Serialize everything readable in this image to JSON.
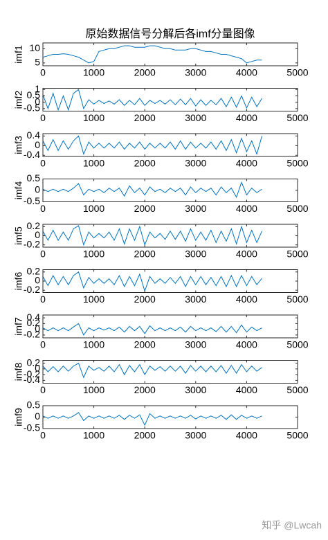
{
  "chart_data": [
    {
      "type": "line",
      "title": "原始数据信号分解后各imf分量图像",
      "ylabel": "imf1",
      "color": "#0072BD",
      "x": [
        0,
        100,
        200,
        300,
        400,
        500,
        600,
        700,
        800,
        900,
        1000,
        1100,
        1200,
        1300,
        1400,
        1500,
        1600,
        1700,
        1800,
        1900,
        2000,
        2100,
        2200,
        2300,
        2400,
        2500,
        2600,
        2700,
        2800,
        2900,
        3000,
        3100,
        3200,
        3300,
        3400,
        3500,
        3600,
        3700,
        3800,
        3900,
        4000,
        4100,
        4200,
        4300
      ],
      "values": [
        7,
        7.5,
        8,
        8,
        8.2,
        8,
        7.5,
        7,
        6,
        5,
        5.5,
        9,
        9.5,
        10,
        10,
        10.5,
        11,
        11,
        10.5,
        10.5,
        10.5,
        11,
        11,
        10.5,
        10,
        10,
        9.5,
        9.5,
        9.5,
        10,
        10,
        9.5,
        9,
        9,
        8.5,
        8,
        8,
        7.5,
        7,
        6.5,
        5,
        5.5,
        6,
        6
      ],
      "xlim": [
        0,
        5000
      ],
      "ylim": [
        4,
        12
      ],
      "xticks": [
        0,
        1000,
        2000,
        3000,
        4000,
        5000
      ],
      "yticks": [
        5,
        10
      ]
    },
    {
      "type": "line",
      "ylabel": "imf2",
      "color": "#0072BD",
      "x": [
        0,
        100,
        200,
        300,
        400,
        500,
        600,
        700,
        800,
        900,
        1000,
        1100,
        1200,
        1300,
        1400,
        1500,
        1600,
        1700,
        1800,
        1900,
        2000,
        2100,
        2200,
        2300,
        2400,
        2500,
        2600,
        2700,
        2800,
        2900,
        3000,
        3100,
        3200,
        3300,
        3400,
        3500,
        3600,
        3700,
        3800,
        3900,
        4000,
        4100,
        4200,
        4300
      ],
      "values": [
        0.6,
        -0.5,
        0.7,
        -0.6,
        0.5,
        -0.6,
        0.7,
        1.0,
        -0.5,
        0.2,
        -0.15,
        0.15,
        -0.1,
        0.1,
        -0.15,
        0.2,
        -0.25,
        0.15,
        -0.2,
        0.3,
        -0.25,
        0.15,
        -0.1,
        0.15,
        -0.15,
        0.2,
        -0.2,
        0.25,
        -0.2,
        0.3,
        -0.3,
        0.2,
        -0.25,
        0.15,
        -0.2,
        0.3,
        -0.35,
        0.4,
        -0.4,
        0.5,
        -0.45,
        0.4,
        -0.35,
        0.3
      ],
      "xlim": [
        0,
        5000
      ],
      "ylim": [
        -0.7,
        1.1
      ],
      "xticks": [
        0,
        1000,
        2000,
        3000,
        4000,
        5000
      ],
      "yticks": [
        -0.5,
        0,
        0.5,
        1
      ]
    },
    {
      "type": "line",
      "ylabel": "imf3",
      "color": "#0072BD",
      "x": [
        0,
        100,
        200,
        300,
        400,
        500,
        600,
        700,
        800,
        900,
        1000,
        1100,
        1200,
        1300,
        1400,
        1500,
        1600,
        1700,
        1800,
        1900,
        2000,
        2100,
        2200,
        2300,
        2400,
        2500,
        2600,
        2700,
        2800,
        2900,
        3000,
        3100,
        3200,
        3300,
        3400,
        3500,
        3600,
        3700,
        3800,
        3900,
        4000,
        4100,
        4200,
        4300
      ],
      "values": [
        0.2,
        -0.2,
        0.25,
        -0.2,
        0.2,
        -0.15,
        0.2,
        0.4,
        -0.35,
        0.15,
        -0.1,
        0.1,
        -0.1,
        0.1,
        -0.1,
        0.15,
        -0.15,
        0.1,
        -0.1,
        0.15,
        -0.15,
        0.1,
        -0.1,
        0.1,
        -0.1,
        0.15,
        -0.15,
        0.2,
        -0.15,
        0.15,
        -0.1,
        0.1,
        -0.1,
        0.15,
        -0.15,
        0.2,
        -0.2,
        0.25,
        -0.3,
        0.3,
        -0.25,
        0.2,
        -0.35,
        0.4
      ],
      "xlim": [
        0,
        5000
      ],
      "ylim": [
        -0.45,
        0.5
      ],
      "xticks": [
        0,
        1000,
        2000,
        3000,
        4000,
        5000
      ],
      "yticks": [
        -0.4,
        0,
        0.4
      ]
    },
    {
      "type": "line",
      "ylabel": "imf4",
      "color": "#0072BD",
      "x": [
        0,
        100,
        200,
        300,
        400,
        500,
        600,
        700,
        800,
        900,
        1000,
        1100,
        1200,
        1300,
        1400,
        1500,
        1600,
        1700,
        1800,
        1900,
        2000,
        2100,
        2200,
        2300,
        2400,
        2500,
        2600,
        2700,
        2800,
        2900,
        3000,
        3100,
        3200,
        3300,
        3400,
        3500,
        3600,
        3700,
        3800,
        3900,
        4000,
        4100,
        4200,
        4300
      ],
      "values": [
        0.05,
        -0.05,
        0.05,
        -0.05,
        0.05,
        -0.05,
        0.1,
        0.3,
        -0.2,
        0.05,
        -0.05,
        0.05,
        -0.1,
        0.1,
        -0.05,
        0.1,
        -0.25,
        0.2,
        -0.1,
        0.1,
        -0.2,
        0.15,
        -0.05,
        0.05,
        -0.1,
        0.1,
        -0.05,
        0.1,
        -0.2,
        0.15,
        -0.1,
        0.1,
        -0.05,
        0.1,
        -0.2,
        0.15,
        -0.1,
        0.1,
        -0.3,
        0.35,
        -0.2,
        0.1,
        -0.1,
        0.05
      ],
      "xlim": [
        0,
        5000
      ],
      "ylim": [
        -0.5,
        0.5
      ],
      "xticks": [
        0,
        1000,
        2000,
        3000,
        4000,
        5000
      ],
      "yticks": [
        -0.5,
        0,
        0.5
      ]
    },
    {
      "type": "line",
      "ylabel": "imf5",
      "color": "#0072BD",
      "x": [
        0,
        100,
        200,
        300,
        400,
        500,
        600,
        700,
        800,
        900,
        1000,
        1100,
        1200,
        1300,
        1400,
        1500,
        1600,
        1700,
        1800,
        1900,
        2000,
        2100,
        2200,
        2300,
        2400,
        2500,
        2600,
        2700,
        2800,
        2900,
        3000,
        3100,
        3200,
        3300,
        3400,
        3500,
        3600,
        3700,
        3800,
        3900,
        4000,
        4100,
        4200,
        4300
      ],
      "values": [
        0.1,
        -0.1,
        0.12,
        -0.1,
        0.08,
        -0.1,
        0.15,
        0.22,
        -0.2,
        0.08,
        -0.05,
        0.05,
        -0.05,
        0.08,
        -0.1,
        0.15,
        -0.18,
        0.15,
        -0.1,
        0.2,
        -0.2,
        0.08,
        -0.05,
        0.05,
        -0.08,
        0.1,
        -0.08,
        0.1,
        -0.12,
        0.15,
        -0.1,
        0.08,
        -0.1,
        0.12,
        -0.15,
        0.1,
        -0.12,
        0.15,
        -0.18,
        0.2,
        -0.15,
        0.12,
        -0.15,
        0.1
      ],
      "xlim": [
        0,
        5000
      ],
      "ylim": [
        -0.25,
        0.25
      ],
      "xticks": [
        0,
        1000,
        2000,
        3000,
        4000,
        5000
      ],
      "yticks": [
        -0.2,
        0,
        0.2
      ]
    },
    {
      "type": "line",
      "ylabel": "imf6",
      "color": "#0072BD",
      "x": [
        0,
        100,
        200,
        300,
        400,
        500,
        600,
        700,
        800,
        900,
        1000,
        1100,
        1200,
        1300,
        1400,
        1500,
        1600,
        1700,
        1800,
        1900,
        2000,
        2100,
        2200,
        2300,
        2400,
        2500,
        2600,
        2700,
        2800,
        2900,
        3000,
        3100,
        3200,
        3300,
        3400,
        3500,
        3600,
        3700,
        3800,
        3900,
        4000,
        4100,
        4200,
        4300
      ],
      "values": [
        0.1,
        -0.1,
        0.12,
        -0.08,
        0.1,
        -0.08,
        0.12,
        0.2,
        -0.15,
        0.08,
        -0.05,
        0.05,
        -0.05,
        0.05,
        -0.08,
        0.12,
        -0.12,
        0.1,
        -0.1,
        0.15,
        -0.22,
        0.1,
        -0.05,
        0.05,
        -0.05,
        0.08,
        -0.05,
        0.1,
        -0.12,
        0.1,
        -0.08,
        0.1,
        -0.08,
        0.08,
        -0.1,
        0.1,
        -0.12,
        0.12,
        -0.12,
        0.12,
        -0.1,
        0.1,
        -0.08,
        0.06
      ],
      "xlim": [
        0,
        5000
      ],
      "ylim": [
        -0.25,
        0.25
      ],
      "xticks": [
        0,
        1000,
        2000,
        3000,
        4000,
        5000
      ],
      "yticks": [
        -0.2,
        0,
        0.2
      ]
    },
    {
      "type": "line",
      "ylabel": "imf7",
      "color": "#0072BD",
      "x": [
        0,
        100,
        200,
        300,
        400,
        500,
        600,
        700,
        800,
        900,
        1000,
        1100,
        1200,
        1300,
        1400,
        1500,
        1600,
        1700,
        1800,
        1900,
        2000,
        2100,
        2200,
        2300,
        2400,
        2500,
        2600,
        2700,
        2800,
        2900,
        3000,
        3100,
        3200,
        3300,
        3400,
        3500,
        3600,
        3700,
        3800,
        3900,
        4000,
        4100,
        4200,
        4300
      ],
      "values": [
        0.05,
        -0.05,
        0.05,
        -0.05,
        0.05,
        -0.05,
        0.08,
        0.2,
        -0.2,
        0.05,
        -0.05,
        0.05,
        -0.03,
        0.05,
        -0.05,
        0.08,
        -0.1,
        0.1,
        -0.05,
        0.1,
        -0.15,
        0.12,
        -0.05,
        0.05,
        -0.05,
        0.05,
        -0.05,
        0.08,
        -0.1,
        0.1,
        -0.05,
        0.05,
        -0.05,
        0.05,
        -0.08,
        0.1,
        -0.1,
        0.1,
        -0.12,
        0.15,
        -0.1,
        0.08,
        -0.05,
        0.05
      ],
      "xlim": [
        0,
        5000
      ],
      "ylim": [
        -0.3,
        0.5
      ],
      "xticks": [
        0,
        1000,
        2000,
        3000,
        4000,
        5000
      ],
      "yticks": [
        -0.2,
        0,
        0.2,
        0.4
      ]
    },
    {
      "type": "line",
      "ylabel": "imf8",
      "color": "#0072BD",
      "x": [
        0,
        100,
        200,
        300,
        400,
        500,
        600,
        700,
        800,
        900,
        1000,
        1100,
        1200,
        1300,
        1400,
        1500,
        1600,
        1700,
        1800,
        1900,
        2000,
        2100,
        2200,
        2300,
        2400,
        2500,
        2600,
        2700,
        2800,
        2900,
        3000,
        3100,
        3200,
        3300,
        3400,
        3500,
        3600,
        3700,
        3800,
        3900,
        4000,
        4100,
        4200,
        4300
      ],
      "values": [
        0.1,
        -0.1,
        0.08,
        -0.1,
        0.1,
        -0.08,
        0.1,
        0.2,
        -0.3,
        0.1,
        -0.05,
        0.05,
        -0.08,
        0.1,
        -0.1,
        0.15,
        -0.2,
        0.12,
        -0.1,
        0.15,
        -0.2,
        0.1,
        -0.05,
        0.08,
        -0.08,
        0.1,
        -0.08,
        0.1,
        -0.15,
        0.12,
        -0.08,
        0.1,
        -0.1,
        0.1,
        -0.1,
        0.12,
        -0.15,
        0.12,
        -0.15,
        0.15,
        -0.1,
        0.1,
        -0.08,
        0.05
      ],
      "xlim": [
        0,
        5000
      ],
      "ylim": [
        -0.5,
        0.3
      ],
      "xticks": [
        0,
        1000,
        2000,
        3000,
        4000,
        5000
      ],
      "yticks": [
        -0.4,
        -0.2,
        0,
        0.2
      ]
    },
    {
      "type": "line",
      "ylabel": "imf9",
      "color": "#0072BD",
      "x": [
        0,
        100,
        200,
        300,
        400,
        500,
        600,
        700,
        800,
        900,
        1000,
        1100,
        1200,
        1300,
        1400,
        1500,
        1600,
        1700,
        1800,
        1900,
        2000,
        2100,
        2200,
        2300,
        2400,
        2500,
        2600,
        2700,
        2800,
        2900,
        3000,
        3100,
        3200,
        3300,
        3400,
        3500,
        3600,
        3700,
        3800,
        3900,
        4000,
        4100,
        4200,
        4300
      ],
      "values": [
        0.05,
        -0.05,
        0.05,
        -0.05,
        0.05,
        -0.05,
        0.05,
        0.2,
        -0.15,
        0.05,
        -0.05,
        0.05,
        -0.05,
        0.05,
        -0.05,
        0.08,
        -0.1,
        0.08,
        -0.05,
        0.1,
        -0.35,
        0.15,
        -0.05,
        0.05,
        -0.05,
        0.05,
        -0.05,
        0.05,
        -0.05,
        0.08,
        -0.08,
        0.05,
        -0.05,
        0.05,
        -0.05,
        0.08,
        -0.1,
        0.1,
        -0.1,
        0.08,
        -0.05,
        0.05,
        -0.05,
        0.05
      ],
      "xlim": [
        0,
        5000
      ],
      "ylim": [
        -0.5,
        0.5
      ],
      "xticks": [
        0,
        1000,
        2000,
        3000,
        4000,
        5000
      ],
      "yticks": [
        -0.5,
        0,
        0.5
      ]
    }
  ],
  "watermark": "知乎 @Lwcah"
}
